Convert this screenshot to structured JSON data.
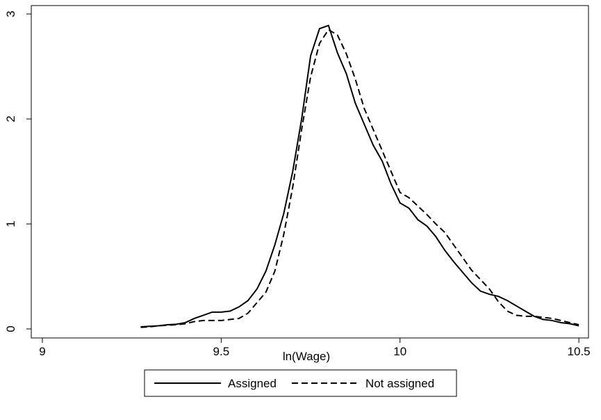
{
  "chart_data": {
    "type": "line",
    "x_label": "ln(Wage)",
    "x": [
      9.275,
      9.3,
      9.325,
      9.35,
      9.375,
      9.4,
      9.425,
      9.45,
      9.475,
      9.5,
      9.525,
      9.55,
      9.575,
      9.6,
      9.625,
      9.65,
      9.675,
      9.7,
      9.725,
      9.75,
      9.775,
      9.8,
      9.825,
      9.85,
      9.875,
      9.9,
      9.925,
      9.95,
      9.975,
      10,
      10.025,
      10.05,
      10.075,
      10.1,
      10.125,
      10.15,
      10.175,
      10.2,
      10.225,
      10.25,
      10.275,
      10.3,
      10.325,
      10.35,
      10.375,
      10.4,
      10.425,
      10.45,
      10.475,
      10.5
    ],
    "series": [
      {
        "name": "Assigned",
        "color": "#000000",
        "line_style": "solid",
        "values": [
          0.02,
          0.025,
          0.03,
          0.04,
          0.045,
          0.06,
          0.1,
          0.13,
          0.16,
          0.16,
          0.17,
          0.21,
          0.27,
          0.38,
          0.55,
          0.8,
          1.1,
          1.5,
          2.0,
          2.6,
          2.86,
          2.89,
          2.63,
          2.43,
          2.15,
          1.95,
          1.75,
          1.6,
          1.38,
          1.2,
          1.15,
          1.04,
          0.98,
          0.88,
          0.75,
          0.64,
          0.54,
          0.44,
          0.36,
          0.33,
          0.31,
          0.27,
          0.22,
          0.17,
          0.12,
          0.09,
          0.08,
          0.06,
          0.05,
          0.03
        ]
      },
      {
        "name": "Not assigned",
        "color": "#000000",
        "line_style": "dashed",
        "values": [
          0.015,
          0.02,
          0.03,
          0.035,
          0.04,
          0.05,
          0.07,
          0.08,
          0.08,
          0.08,
          0.09,
          0.1,
          0.15,
          0.25,
          0.35,
          0.55,
          0.9,
          1.35,
          1.9,
          2.4,
          2.72,
          2.85,
          2.8,
          2.62,
          2.38,
          2.1,
          1.9,
          1.7,
          1.5,
          1.3,
          1.25,
          1.17,
          1.09,
          1.0,
          0.92,
          0.8,
          0.68,
          0.56,
          0.47,
          0.38,
          0.26,
          0.17,
          0.13,
          0.12,
          0.12,
          0.11,
          0.1,
          0.08,
          0.06,
          0.04
        ]
      }
    ],
    "xlim": [
      8.969,
      10.527
    ],
    "xticks": [
      9,
      9.5,
      10,
      10.5
    ],
    "ylim": [
      -0.086,
      3.08
    ],
    "yticks": [
      0,
      1,
      2,
      3
    ],
    "grid": false,
    "legend": "bottom"
  }
}
